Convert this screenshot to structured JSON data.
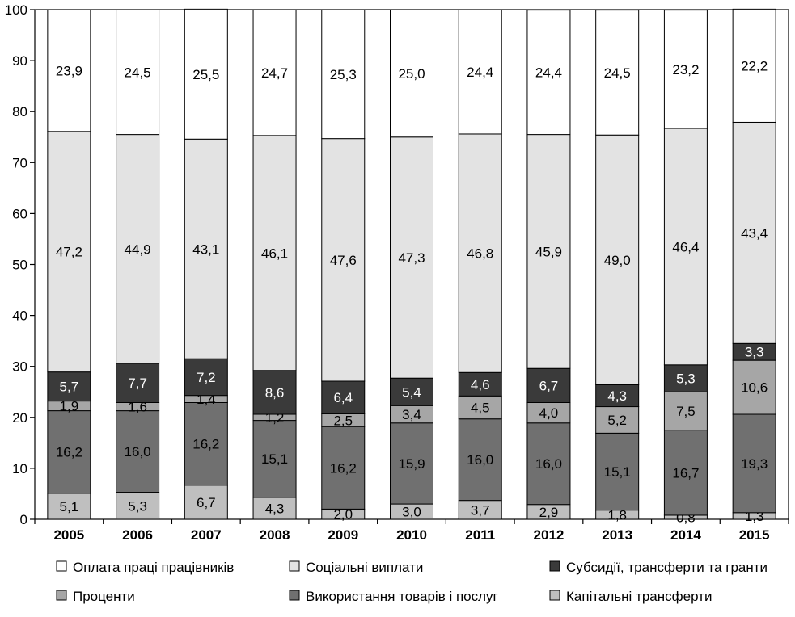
{
  "chart_data": {
    "type": "bar",
    "stacked": true,
    "categories": [
      "2005",
      "2006",
      "2007",
      "2008",
      "2009",
      "2010",
      "2011",
      "2012",
      "2013",
      "2014",
      "2015"
    ],
    "ylim": [
      0,
      100
    ],
    "yticks": [
      0,
      10,
      20,
      30,
      40,
      50,
      60,
      70,
      80,
      90,
      100
    ],
    "title": "",
    "xlabel": "",
    "ylabel": "",
    "grid": false,
    "legend_position": "bottom",
    "series": [
      {
        "name": "Капітальні трансферти",
        "color": "#bfbfbf",
        "values": [
          5.1,
          5.3,
          6.7,
          4.3,
          2.0,
          3.0,
          3.7,
          2.9,
          1.8,
          0.8,
          1.3
        ],
        "labels": [
          "5,1",
          "5,3",
          "6,7",
          "4,3",
          "2,0",
          "3,0",
          "3,7",
          "2,9",
          "1,8",
          "0,8",
          "1,3"
        ]
      },
      {
        "name": "Використання товарів і послуг",
        "color": "#707070",
        "values": [
          16.2,
          16.0,
          16.2,
          15.1,
          16.2,
          15.9,
          16.0,
          16.0,
          15.1,
          16.7,
          19.3
        ],
        "labels": [
          "16,2",
          "16,0",
          "16,2",
          "15,1",
          "16,2",
          "15,9",
          "16,0",
          "16,0",
          "15,1",
          "16,7",
          "19,3"
        ]
      },
      {
        "name": "Проценти",
        "color": "#a6a6a6",
        "values": [
          1.9,
          1.6,
          1.4,
          1.2,
          2.5,
          3.4,
          4.5,
          4.0,
          5.2,
          7.5,
          10.6
        ],
        "labels": [
          "1,9",
          "1,6",
          "1,4",
          "1,2",
          "2,5",
          "3,4",
          "4,5",
          "4,0",
          "5,2",
          "7,5",
          "10,6"
        ]
      },
      {
        "name": "Субсидії, трансферти та гранти",
        "color": "#3a3a3a",
        "values": [
          5.7,
          7.7,
          7.2,
          8.6,
          6.4,
          5.4,
          4.6,
          6.7,
          4.3,
          5.3,
          3.3
        ],
        "labels": [
          "5,7",
          "7,7",
          "7,2",
          "8,6",
          "6,4",
          "5,4",
          "4,6",
          "6,7",
          "4,3",
          "5,3",
          "3,3"
        ]
      },
      {
        "name": "Соціальні виплати",
        "color": "#e3e3e3",
        "values": [
          47.2,
          44.9,
          43.1,
          46.1,
          47.6,
          47.3,
          46.8,
          45.9,
          49.0,
          46.4,
          43.4
        ],
        "labels": [
          "47,2",
          "44,9",
          "43,1",
          "46,1",
          "47,6",
          "47,3",
          "46,8",
          "45,9",
          "49,0",
          "46,4",
          "43,4"
        ]
      },
      {
        "name": "Оплата праці працівників",
        "color": "#ffffff",
        "values": [
          23.9,
          24.5,
          25.5,
          24.7,
          25.3,
          25.0,
          24.4,
          24.4,
          24.5,
          23.2,
          22.2
        ],
        "labels": [
          "23,9",
          "24,5",
          "25,5",
          "24,7",
          "25,3",
          "25,0",
          "24,4",
          "24,4",
          "24,5",
          "23,2",
          "22,2"
        ]
      }
    ]
  },
  "legend": [
    {
      "series_index": 5,
      "label": "Оплата праці працівників"
    },
    {
      "series_index": 4,
      "label": "Соціальні виплати"
    },
    {
      "series_index": 3,
      "label": "Субсидії, трансферти та гранти"
    },
    {
      "series_index": 2,
      "label": "Проценти"
    },
    {
      "series_index": 1,
      "label": "Використання товарів і послуг"
    },
    {
      "series_index": 0,
      "label": "Капітальні трансферти"
    }
  ]
}
